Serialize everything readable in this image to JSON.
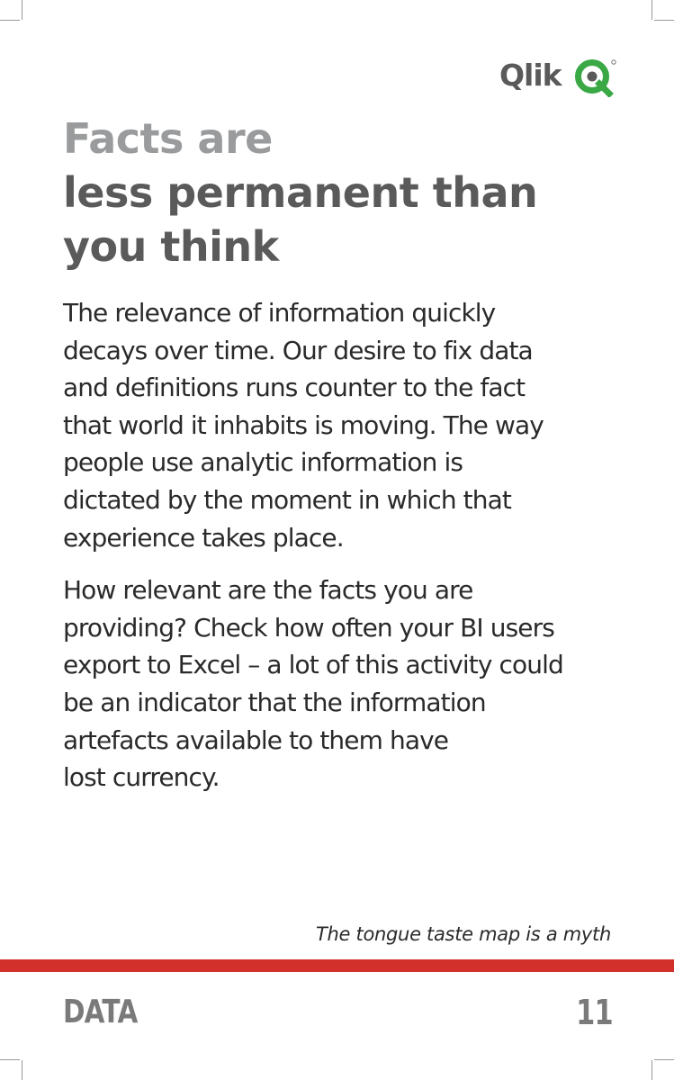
{
  "brand": {
    "name": "Qlik",
    "accent": "#3aa845",
    "text_color": "#5a5a5a"
  },
  "headline": {
    "line1": "Facts are",
    "line2": "less permanent than",
    "line3": "you think"
  },
  "body": {
    "paragraphs": [
      [
        "The relevance of information quickly",
        "decays over time. Our desire to fix data",
        "and definitions runs counter to the fact",
        "that world it inhabits is moving. The way",
        "people use analytic information is",
        "dictated by the moment in which that",
        "experience takes place."
      ],
      [
        "How relevant are the facts you are",
        "providing? Check how often your BI users",
        "export to Excel – a lot of this activity could",
        "be an indicator that the information",
        "artefacts available to them have",
        "lost currency."
      ]
    ]
  },
  "footer": {
    "fact": "The tongue taste map is a myth",
    "section": "DATA",
    "page_number": "11",
    "rule_color": "#d2312b"
  }
}
